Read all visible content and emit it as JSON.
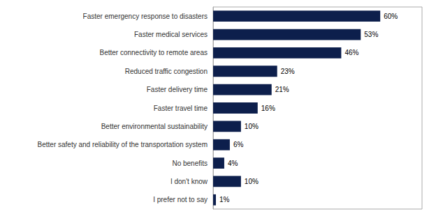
{
  "chart_data": {
    "type": "bar",
    "orientation": "horizontal",
    "categories": [
      "Faster emergency response to disasters",
      "Faster medical services",
      "Better connectivity to remote areas",
      "Reduced traffic congestion",
      "Faster delivery time",
      "Faster travel time",
      "Better environmental sustainability",
      "Better safety and reliability of the transportation system",
      "No benefits",
      "I don't know",
      "I prefer not to say"
    ],
    "values": [
      60,
      53,
      46,
      23,
      21,
      16,
      10,
      6,
      4,
      10,
      1
    ],
    "value_labels": [
      "60%",
      "53%",
      "46%",
      "23%",
      "21%",
      "16%",
      "10%",
      "6%",
      "4%",
      "10%",
      "1%"
    ],
    "data_labels": true,
    "color": "#0d1f4c",
    "xlim": [
      0,
      75
    ],
    "grid": false,
    "tick_labels": "y"
  }
}
